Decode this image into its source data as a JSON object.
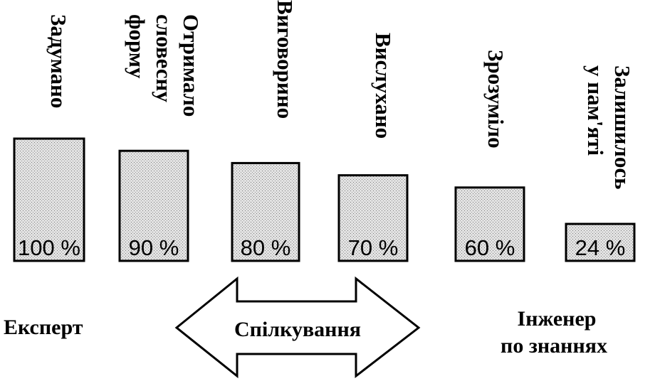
{
  "bars": [
    {
      "lines": [
        "Задумано"
      ],
      "value": 100,
      "label": "100 %"
    },
    {
      "lines": [
        "Отримало",
        "словесну",
        "форму"
      ],
      "value": 90,
      "label": "90 %"
    },
    {
      "lines": [
        "Виговорино"
      ],
      "value": 80,
      "label": "80 %"
    },
    {
      "lines": [
        "Вислухано"
      ],
      "value": 70,
      "label": "70 %"
    },
    {
      "lines": [
        "Зрозуміло"
      ],
      "value": 60,
      "label": "60 %"
    },
    {
      "lines": [
        "Залишилось",
        "у пам'яті"
      ],
      "value": 24,
      "label": "24 %"
    }
  ],
  "left_label": "Експерт",
  "arrow_label": "Спілкування",
  "right_label": [
    "Інженер",
    "по знаннях"
  ],
  "colors": {
    "bar_fill": "#d6d6d6",
    "stroke": "#000000"
  }
}
